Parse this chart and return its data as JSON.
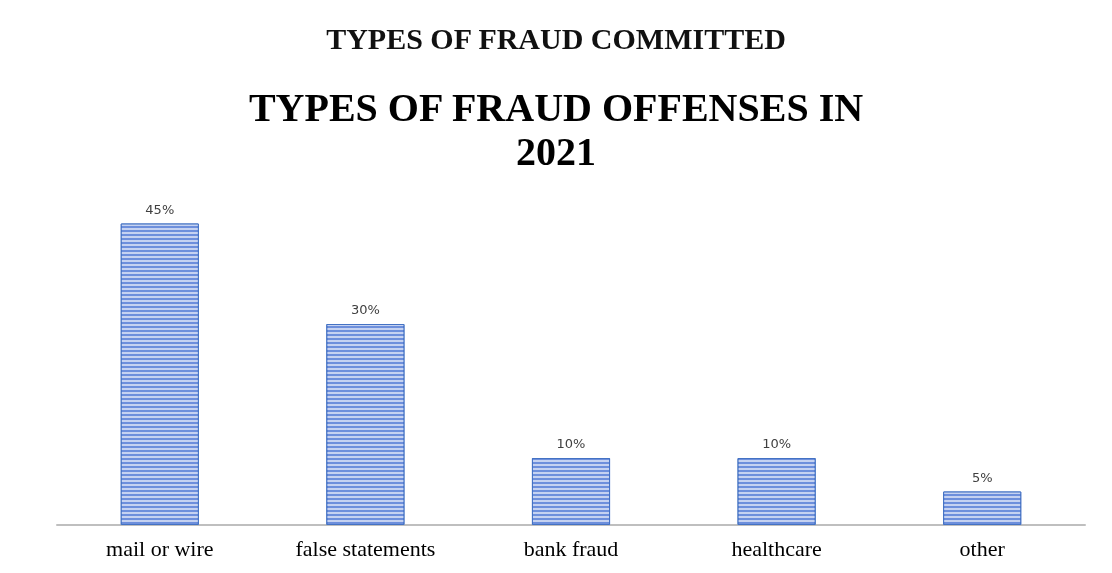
{
  "chart_data": {
    "type": "bar",
    "title": "TYPES OF FRAUD COMMITTED",
    "subtitle": "TYPES OF FRAUD OFFENSES IN\n2021",
    "categories": [
      "mail or wire",
      "false statements",
      "bank fraud",
      "healthcare",
      "other"
    ],
    "values": [
      45,
      30,
      10,
      10,
      5
    ],
    "value_labels": [
      "45%",
      "30%",
      "10%",
      "10%",
      "5%"
    ],
    "color": "#6d8fdc"
  }
}
